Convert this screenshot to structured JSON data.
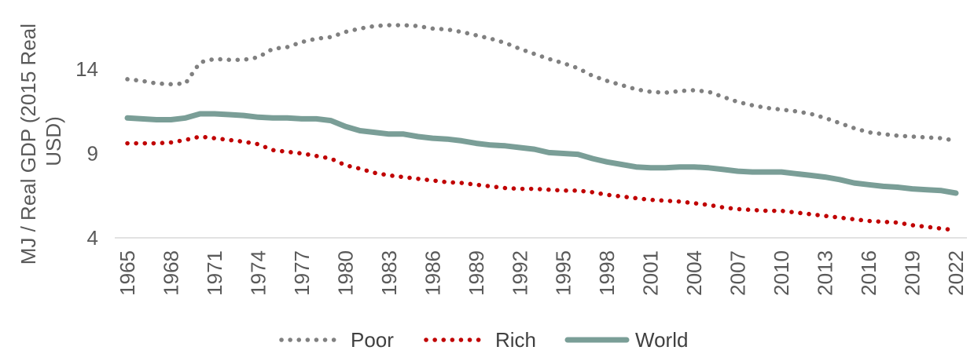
{
  "chart_data": {
    "type": "line",
    "title": "",
    "xlabel": "",
    "ylabel": "MJ / Real GDP (2015 Real USD)",
    "ylabel_lines": [
      "MJ / Real GDP (2015 Real",
      "USD)"
    ],
    "ylim": [
      4,
      16.5
    ],
    "yticks": [
      4,
      9,
      14
    ],
    "xticks": [
      "1965",
      "1968",
      "1971",
      "1974",
      "1977",
      "1980",
      "1983",
      "1986",
      "1989",
      "1992",
      "1995",
      "1998",
      "2001",
      "2004",
      "2007",
      "2010",
      "2013",
      "2016",
      "2019",
      "2022"
    ],
    "x": [
      1965,
      1966,
      1967,
      1968,
      1969,
      1970,
      1971,
      1972,
      1973,
      1974,
      1975,
      1976,
      1977,
      1978,
      1979,
      1980,
      1981,
      1982,
      1983,
      1984,
      1985,
      1986,
      1987,
      1988,
      1989,
      1990,
      1991,
      1992,
      1993,
      1994,
      1995,
      1996,
      1997,
      1998,
      1999,
      2000,
      2001,
      2002,
      2003,
      2004,
      2005,
      2006,
      2007,
      2008,
      2009,
      2010,
      2011,
      2012,
      2013,
      2014,
      2015,
      2016,
      2017,
      2018,
      2019,
      2020,
      2021,
      2022
    ],
    "series": [
      {
        "name": "Poor",
        "color": "#808080",
        "style": "dotted",
        "values": [
          13.4,
          13.3,
          13.15,
          13.1,
          13.15,
          14.4,
          14.6,
          14.55,
          14.55,
          14.7,
          15.2,
          15.3,
          15.6,
          15.8,
          15.9,
          16.2,
          16.4,
          16.55,
          16.6,
          16.6,
          16.55,
          16.4,
          16.35,
          16.2,
          16.0,
          15.8,
          15.55,
          15.2,
          14.9,
          14.6,
          14.35,
          14.05,
          13.6,
          13.3,
          13.05,
          12.8,
          12.65,
          12.6,
          12.7,
          12.75,
          12.65,
          12.35,
          12.05,
          11.85,
          11.7,
          11.6,
          11.5,
          11.35,
          11.1,
          10.8,
          10.5,
          10.25,
          10.15,
          10.05,
          10.0,
          9.95,
          9.9,
          9.75
        ]
      },
      {
        "name": "Rich",
        "color": "#c00000",
        "style": "dotted",
        "values": [
          9.6,
          9.6,
          9.6,
          9.65,
          9.8,
          10.0,
          9.9,
          9.8,
          9.7,
          9.55,
          9.2,
          9.1,
          9.0,
          8.85,
          8.7,
          8.3,
          8.1,
          7.85,
          7.7,
          7.6,
          7.5,
          7.4,
          7.3,
          7.25,
          7.15,
          7.05,
          6.95,
          6.9,
          6.9,
          6.85,
          6.8,
          6.8,
          6.7,
          6.55,
          6.45,
          6.35,
          6.25,
          6.2,
          6.15,
          6.05,
          5.95,
          5.8,
          5.7,
          5.65,
          5.6,
          5.6,
          5.5,
          5.4,
          5.3,
          5.2,
          5.1,
          5.0,
          4.95,
          4.9,
          4.75,
          4.65,
          4.55,
          4.45
        ]
      },
      {
        "name": "World",
        "color": "#7a9e97",
        "style": "solid",
        "values": [
          11.1,
          11.05,
          11.0,
          11.0,
          11.1,
          11.35,
          11.35,
          11.3,
          11.25,
          11.15,
          11.1,
          11.1,
          11.05,
          11.05,
          10.95,
          10.6,
          10.35,
          10.25,
          10.15,
          10.15,
          10.0,
          9.9,
          9.85,
          9.75,
          9.6,
          9.5,
          9.45,
          9.35,
          9.25,
          9.05,
          9.0,
          8.95,
          8.7,
          8.5,
          8.35,
          8.2,
          8.15,
          8.15,
          8.2,
          8.2,
          8.15,
          8.05,
          7.95,
          7.9,
          7.9,
          7.9,
          7.8,
          7.7,
          7.6,
          7.45,
          7.25,
          7.15,
          7.05,
          7.0,
          6.9,
          6.85,
          6.8,
          6.65
        ]
      }
    ],
    "legend_position": "bottom-center",
    "grid": false
  }
}
